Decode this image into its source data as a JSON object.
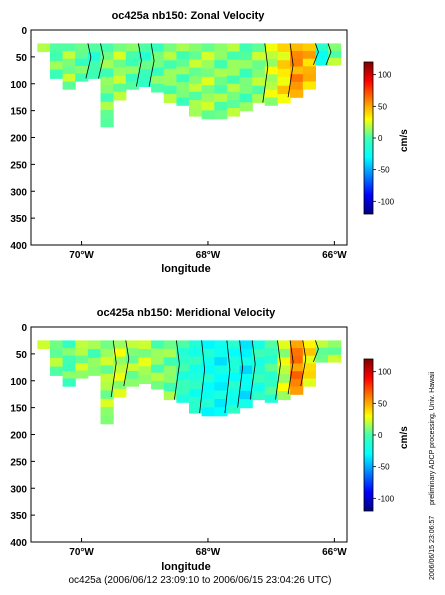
{
  "chart_data": [
    {
      "type": "heatmap",
      "title": "oc425a nb150: Zonal Velocity",
      "xlabel": "longitude",
      "ylabel": "",
      "x_ticks": [
        "70°W",
        "68°W",
        "66°W"
      ],
      "x_tick_values": [
        -70,
        -68,
        -66
      ],
      "xlim": [
        -70.8,
        -65.8
      ],
      "y_ticks": [
        "0",
        "50",
        "100",
        "150",
        "200",
        "250",
        "300",
        "350",
        "400"
      ],
      "y_tick_values": [
        0,
        50,
        100,
        150,
        200,
        250,
        300,
        350,
        400
      ],
      "ylim": [
        400,
        0
      ],
      "colorbar": {
        "label": "cm/s",
        "ticks": [
          "100",
          "50",
          "0",
          "-50",
          "-100"
        ],
        "tick_values": [
          100,
          50,
          0,
          -50,
          -100
        ],
        "range": [
          -120,
          120
        ]
      },
      "cells": [
        {
          "lon": -70.6,
          "d": 25,
          "v": 8,
          "depth_max": 40
        },
        {
          "lon": -70.4,
          "d": 25,
          "v": 5,
          "depth_max": 90
        },
        {
          "lon": -70.2,
          "d": 25,
          "v": 12,
          "depth_max": 110
        },
        {
          "lon": -70.0,
          "d": 25,
          "v": 2,
          "depth_max": 95
        },
        {
          "lon": -69.8,
          "d": 25,
          "v": -5,
          "depth_max": 90
        },
        {
          "lon": -69.6,
          "d": 25,
          "v": 8,
          "depth_max": 180
        },
        {
          "lon": -69.4,
          "d": 25,
          "v": 14,
          "depth_max": 130
        },
        {
          "lon": -69.2,
          "d": 25,
          "v": 3,
          "depth_max": 110
        },
        {
          "lon": -69.0,
          "d": 25,
          "v": -2,
          "depth_max": 105
        },
        {
          "lon": -68.8,
          "d": 25,
          "v": 4,
          "depth_max": 115
        },
        {
          "lon": -68.6,
          "d": 25,
          "v": 10,
          "depth_max": 135
        },
        {
          "lon": -68.4,
          "d": 25,
          "v": 6,
          "depth_max": 140
        },
        {
          "lon": -68.2,
          "d": 25,
          "v": 12,
          "depth_max": 160
        },
        {
          "lon": -68.0,
          "d": 25,
          "v": 15,
          "depth_max": 165
        },
        {
          "lon": -67.8,
          "d": 25,
          "v": 8,
          "depth_max": 165
        },
        {
          "lon": -67.6,
          "d": 25,
          "v": 10,
          "depth_max": 160
        },
        {
          "lon": -67.4,
          "d": 25,
          "v": 5,
          "depth_max": 150
        },
        {
          "lon": -67.2,
          "d": 25,
          "v": 12,
          "depth_max": 135
        },
        {
          "lon": -67.0,
          "d": 25,
          "v": 20,
          "depth_max": 140
        },
        {
          "lon": -66.8,
          "d": 25,
          "v": 35,
          "depth_max": 135
        },
        {
          "lon": -66.6,
          "d": 25,
          "v": 55,
          "depth_max": 125
        },
        {
          "lon": -66.4,
          "d": 25,
          "v": 45,
          "depth_max": 110
        },
        {
          "lon": -66.2,
          "d": 25,
          "v": -20,
          "depth_max": 65
        },
        {
          "lon": -66.0,
          "d": 25,
          "v": 10,
          "depth_max": 65
        }
      ]
    },
    {
      "type": "heatmap",
      "title": "oc425a nb150: Meridional Velocity",
      "xlabel": "longitude",
      "ylabel": "",
      "x_ticks": [
        "70°W",
        "68°W",
        "66°W"
      ],
      "x_tick_values": [
        -70,
        -68,
        -66
      ],
      "xlim": [
        -70.8,
        -65.8
      ],
      "y_ticks": [
        "0",
        "50",
        "100",
        "150",
        "200",
        "250",
        "300",
        "350",
        "400"
      ],
      "y_tick_values": [
        0,
        50,
        100,
        150,
        200,
        250,
        300,
        350,
        400
      ],
      "ylim": [
        400,
        0
      ],
      "colorbar": {
        "label": "cm/s",
        "ticks": [
          "100",
          "50",
          "0",
          "-50",
          "-100"
        ],
        "tick_values": [
          100,
          50,
          0,
          -50,
          -100
        ],
        "range": [
          -120,
          120
        ]
      },
      "cells": [
        {
          "lon": -70.6,
          "d": 25,
          "v": 12,
          "depth_max": 40
        },
        {
          "lon": -70.4,
          "d": 25,
          "v": 10,
          "depth_max": 90
        },
        {
          "lon": -70.2,
          "d": 25,
          "v": 2,
          "depth_max": 110
        },
        {
          "lon": -70.0,
          "d": 25,
          "v": 15,
          "depth_max": 95
        },
        {
          "lon": -69.8,
          "d": 25,
          "v": 8,
          "depth_max": 90
        },
        {
          "lon": -69.6,
          "d": 25,
          "v": 15,
          "depth_max": 180
        },
        {
          "lon": -69.4,
          "d": 25,
          "v": 20,
          "depth_max": 130
        },
        {
          "lon": -69.2,
          "d": 25,
          "v": 12,
          "depth_max": 110
        },
        {
          "lon": -69.0,
          "d": 25,
          "v": 18,
          "depth_max": 105
        },
        {
          "lon": -68.8,
          "d": 25,
          "v": 10,
          "depth_max": 115
        },
        {
          "lon": -68.6,
          "d": 25,
          "v": 8,
          "depth_max": 135
        },
        {
          "lon": -68.4,
          "d": 25,
          "v": -8,
          "depth_max": 140
        },
        {
          "lon": -68.2,
          "d": 25,
          "v": -15,
          "depth_max": 160
        },
        {
          "lon": -68.0,
          "d": 25,
          "v": -22,
          "depth_max": 165
        },
        {
          "lon": -67.8,
          "d": 25,
          "v": -28,
          "depth_max": 165
        },
        {
          "lon": -67.6,
          "d": 25,
          "v": -20,
          "depth_max": 160
        },
        {
          "lon": -67.4,
          "d": 25,
          "v": -30,
          "depth_max": 150
        },
        {
          "lon": -67.2,
          "d": 25,
          "v": -12,
          "depth_max": 135
        },
        {
          "lon": -67.0,
          "d": 25,
          "v": -5,
          "depth_max": 140
        },
        {
          "lon": -66.8,
          "d": 25,
          "v": 20,
          "depth_max": 135
        },
        {
          "lon": -66.6,
          "d": 25,
          "v": 60,
          "depth_max": 125
        },
        {
          "lon": -66.4,
          "d": 25,
          "v": 35,
          "depth_max": 110
        },
        {
          "lon": -66.2,
          "d": 25,
          "v": 10,
          "depth_max": 65
        },
        {
          "lon": -66.0,
          "d": 25,
          "v": 12,
          "depth_max": 65
        }
      ]
    }
  ],
  "side_text": "preliminary ADCP processing,  Univ. Hawaii",
  "side_stamp": "2006/06/15 23:06:57",
  "footer_text": "oc425a (2006/06/12 23:09:10 to 2006/06/15 23:04:26 UTC)"
}
